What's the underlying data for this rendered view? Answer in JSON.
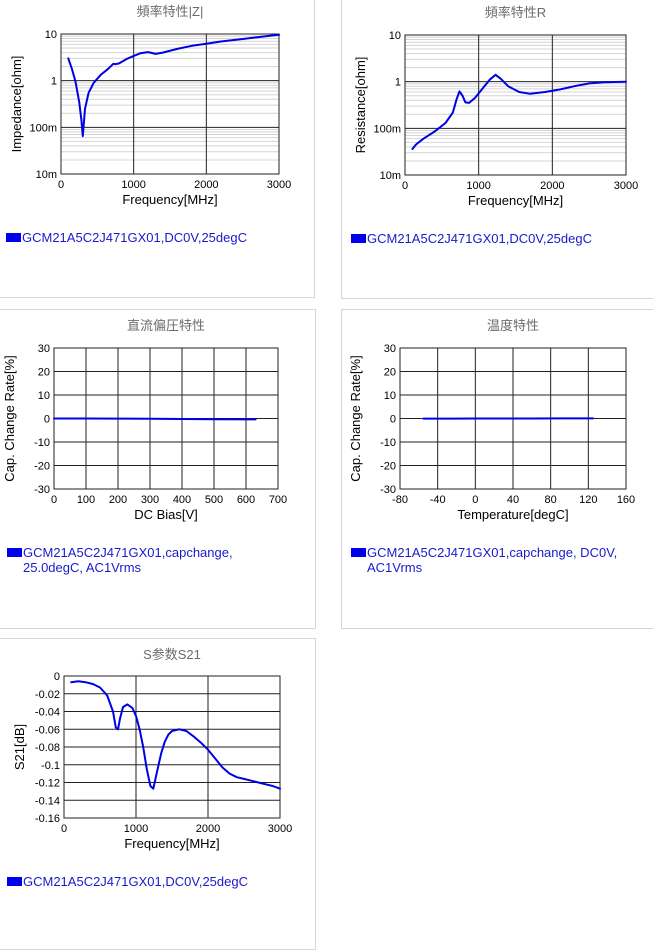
{
  "chart_data": [
    {
      "id": "c1",
      "type": "line",
      "title": "頻率特性|Z|",
      "xlabel": "Frequency[MHz]",
      "ylabel": "Impedance[ohm]",
      "xlim": [
        0,
        3000
      ],
      "ylim": [
        0.01,
        10
      ],
      "yscale": "log",
      "xticks": [
        0,
        1000,
        2000,
        3000
      ],
      "yticks": [
        0.01,
        0.1,
        1,
        10
      ],
      "yticklabels": [
        "10m",
        "100m",
        "1",
        "10"
      ],
      "legend": [
        "GCM21A5C2J471GX01,DC0V,25degC"
      ],
      "series": [
        {
          "x": [
            100,
            150,
            200,
            250,
            280,
            300,
            330,
            380,
            450,
            550,
            650,
            720,
            750,
            800,
            900,
            1000,
            1100,
            1200,
            1300,
            1400,
            1600,
            1800,
            2000,
            2200,
            2500,
            2800,
            3000
          ],
          "y": [
            3.0,
            1.8,
            0.95,
            0.35,
            0.15,
            0.065,
            0.25,
            0.55,
            0.9,
            1.35,
            1.8,
            2.3,
            2.25,
            2.35,
            2.9,
            3.4,
            3.9,
            4.1,
            3.75,
            4.0,
            4.8,
            5.6,
            6.2,
            6.9,
            7.8,
            8.9,
            9.6
          ]
        }
      ]
    },
    {
      "id": "c2",
      "type": "line",
      "title": "頻率特性R",
      "xlabel": "Frequency[MHz]",
      "ylabel": "Resistance[ohm]",
      "xlim": [
        0,
        3000
      ],
      "ylim": [
        0.01,
        10
      ],
      "yscale": "log",
      "xticks": [
        0,
        1000,
        2000,
        3000
      ],
      "yticks": [
        0.01,
        0.1,
        1,
        10
      ],
      "yticklabels": [
        "10m",
        "100m",
        "1",
        "10"
      ],
      "legend": [
        "GCM21A5C2J471GX01,DC0V,25degC"
      ],
      "series": [
        {
          "x": [
            100,
            150,
            250,
            400,
            550,
            650,
            700,
            740,
            780,
            820,
            870,
            950,
            1050,
            1150,
            1230,
            1300,
            1400,
            1550,
            1700,
            1900,
            2100,
            2300,
            2500,
            2700,
            3000
          ],
          "y": [
            0.036,
            0.045,
            0.06,
            0.085,
            0.13,
            0.22,
            0.42,
            0.62,
            0.5,
            0.36,
            0.35,
            0.45,
            0.7,
            1.1,
            1.4,
            1.15,
            0.8,
            0.6,
            0.55,
            0.6,
            0.68,
            0.8,
            0.92,
            0.97,
            1.0
          ]
        }
      ]
    },
    {
      "id": "c3",
      "type": "line",
      "title": "直流偏圧特性",
      "xlabel": "DC Bias[V]",
      "ylabel": "Cap. Change Rate[%]",
      "xlim": [
        0,
        700
      ],
      "ylim": [
        -30,
        30
      ],
      "xticks": [
        0,
        100,
        200,
        300,
        400,
        500,
        600,
        700
      ],
      "yticks": [
        -30,
        -20,
        -10,
        0,
        10,
        20,
        30
      ],
      "legend": [
        "GCM21A5C2J471GX01,capchange,",
        "25.0degC, AC1Vrms"
      ],
      "series": [
        {
          "x": [
            0,
            100,
            200,
            300,
            400,
            500,
            630
          ],
          "y": [
            0,
            0,
            -0.05,
            -0.1,
            -0.2,
            -0.3,
            -0.4
          ]
        }
      ]
    },
    {
      "id": "c4",
      "type": "line",
      "title": "温度特性",
      "xlabel": "Temperature[degC]",
      "ylabel": "Cap. Change Rate[%]",
      "xlim": [
        -80,
        160
      ],
      "ylim": [
        -30,
        30
      ],
      "xticks": [
        -80,
        -40,
        0,
        40,
        80,
        120,
        160
      ],
      "yticks": [
        -30,
        -20,
        -10,
        0,
        10,
        20,
        30
      ],
      "legend": [
        "GCM21A5C2J471GX01,capchange, DC0V,",
        "AC1Vrms"
      ],
      "series": [
        {
          "x": [
            -55,
            -25,
            0,
            25,
            60,
            90,
            125
          ],
          "y": [
            -0.05,
            -0.03,
            0,
            0,
            0.02,
            0.04,
            0.05
          ]
        }
      ]
    },
    {
      "id": "c5",
      "type": "line",
      "title": "S参数S21",
      "xlabel": "Frequency[MHz]",
      "ylabel": "S21[dB]",
      "xlim": [
        0,
        3000
      ],
      "ylim": [
        -0.16,
        0
      ],
      "xticks": [
        0,
        1000,
        2000,
        3000
      ],
      "yticks": [
        -0.16,
        -0.14,
        -0.12,
        -0.1,
        -0.08,
        -0.06,
        -0.04,
        -0.02,
        0
      ],
      "yticklabels": [
        "-0.16",
        "-0.14",
        "-0.12",
        "-0.1",
        "-0.08",
        "-0.06",
        "-0.04",
        "-0.02",
        "0"
      ],
      "legend": [
        "GCM21A5C2J471GX01,DC0V,25degC"
      ],
      "series": [
        {
          "x": [
            100,
            200,
            300,
            400,
            500,
            600,
            680,
            720,
            750,
            780,
            820,
            880,
            950,
            1000,
            1050,
            1100,
            1150,
            1200,
            1240,
            1300,
            1350,
            1400,
            1450,
            1500,
            1600,
            1700,
            1800,
            1900,
            2000,
            2100,
            2200,
            2300,
            2400,
            2500,
            2600,
            2700,
            2800,
            2900,
            3000
          ],
          "y": [
            -0.007,
            -0.006,
            -0.007,
            -0.009,
            -0.013,
            -0.022,
            -0.04,
            -0.058,
            -0.06,
            -0.047,
            -0.035,
            -0.032,
            -0.036,
            -0.045,
            -0.06,
            -0.08,
            -0.105,
            -0.124,
            -0.127,
            -0.105,
            -0.087,
            -0.074,
            -0.066,
            -0.062,
            -0.06,
            -0.062,
            -0.068,
            -0.075,
            -0.083,
            -0.093,
            -0.103,
            -0.11,
            -0.114,
            -0.116,
            -0.118,
            -0.12,
            -0.122,
            -0.124,
            -0.127
          ]
        }
      ]
    }
  ]
}
